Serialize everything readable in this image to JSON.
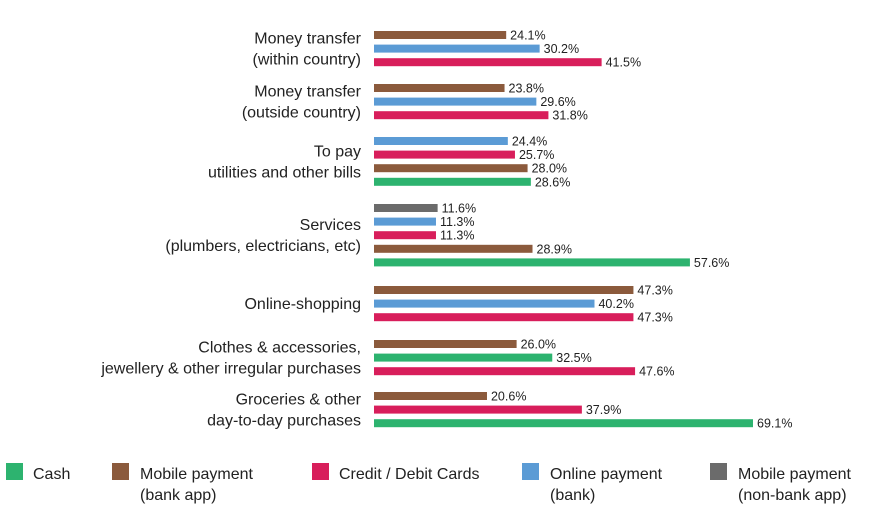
{
  "chart_data": {
    "type": "bar",
    "orientation": "horizontal",
    "value_suffix": "%",
    "xlim": [
      0,
      75
    ],
    "grid": false,
    "legend_position": "bottom",
    "legend": [
      {
        "key": "cash",
        "lines": [
          "Cash"
        ],
        "color": "#2db36f"
      },
      {
        "key": "mobile_bank",
        "lines": [
          "Mobile payment",
          "(bank app)"
        ],
        "color": "#8b5a3c"
      },
      {
        "key": "card",
        "lines": [
          "Credit / Debit Cards"
        ],
        "color": "#d81e5b"
      },
      {
        "key": "online_bank",
        "lines": [
          "Online payment",
          "(bank)"
        ],
        "color": "#5b9bd5"
      },
      {
        "key": "mobile_nonbank",
        "lines": [
          "Mobile payment",
          "(non-bank app)"
        ],
        "color": "#6b6b6b"
      }
    ],
    "categories": [
      {
        "lines": [
          "Money transfer",
          "(within country)"
        ],
        "bars": [
          {
            "series": "mobile_bank",
            "value": 24.1,
            "label": "24.1%"
          },
          {
            "series": "online_bank",
            "value": 30.2,
            "label": "30.2%"
          },
          {
            "series": "card",
            "value": 41.5,
            "label": "41.5%"
          }
        ]
      },
      {
        "lines": [
          "Money transfer",
          "(outside country)"
        ],
        "bars": [
          {
            "series": "mobile_bank",
            "value": 23.8,
            "label": "23.8%"
          },
          {
            "series": "online_bank",
            "value": 29.6,
            "label": "29.6%"
          },
          {
            "series": "card",
            "value": 31.8,
            "label": "31.8%"
          }
        ]
      },
      {
        "lines": [
          "To pay",
          "utilities and other bills"
        ],
        "bars": [
          {
            "series": "online_bank",
            "value": 24.4,
            "label": "24.4%"
          },
          {
            "series": "card",
            "value": 25.7,
            "label": "25.7%"
          },
          {
            "series": "mobile_bank",
            "value": 28.0,
            "label": "28.0%"
          },
          {
            "series": "cash",
            "value": 28.6,
            "label": "28.6%"
          }
        ]
      },
      {
        "lines": [
          "Services",
          "(plumbers, electricians, etc)"
        ],
        "bars": [
          {
            "series": "mobile_nonbank",
            "value": 11.6,
            "label": "11.6%"
          },
          {
            "series": "online_bank",
            "value": 11.3,
            "label": "11.3%"
          },
          {
            "series": "card",
            "value": 11.3,
            "label": "11.3%"
          },
          {
            "series": "mobile_bank",
            "value": 28.9,
            "label": "28.9%"
          },
          {
            "series": "cash",
            "value": 57.6,
            "label": "57.6%"
          }
        ]
      },
      {
        "lines": [
          "Online-shopping"
        ],
        "bars": [
          {
            "series": "mobile_bank",
            "value": 47.3,
            "label": "47.3%"
          },
          {
            "series": "online_bank",
            "value": 40.2,
            "label": "40.2%"
          },
          {
            "series": "card",
            "value": 47.3,
            "label": "47.3%"
          }
        ]
      },
      {
        "lines": [
          "Clothes & accessories,",
          "jewellery & other irregular purchases"
        ],
        "bars": [
          {
            "series": "mobile_bank",
            "value": 26.0,
            "label": "26.0%"
          },
          {
            "series": "cash",
            "value": 32.5,
            "label": "32.5%"
          },
          {
            "series": "card",
            "value": 47.6,
            "label": "47.6%"
          }
        ]
      },
      {
        "lines": [
          "Groceries & other",
          "day-to-day purchases"
        ],
        "bars": [
          {
            "series": "mobile_bank",
            "value": 20.6,
            "label": "20.6%"
          },
          {
            "series": "card",
            "value": 37.9,
            "label": "37.9%"
          },
          {
            "series": "cash",
            "value": 69.1,
            "label": "69.1%"
          }
        ]
      }
    ]
  }
}
